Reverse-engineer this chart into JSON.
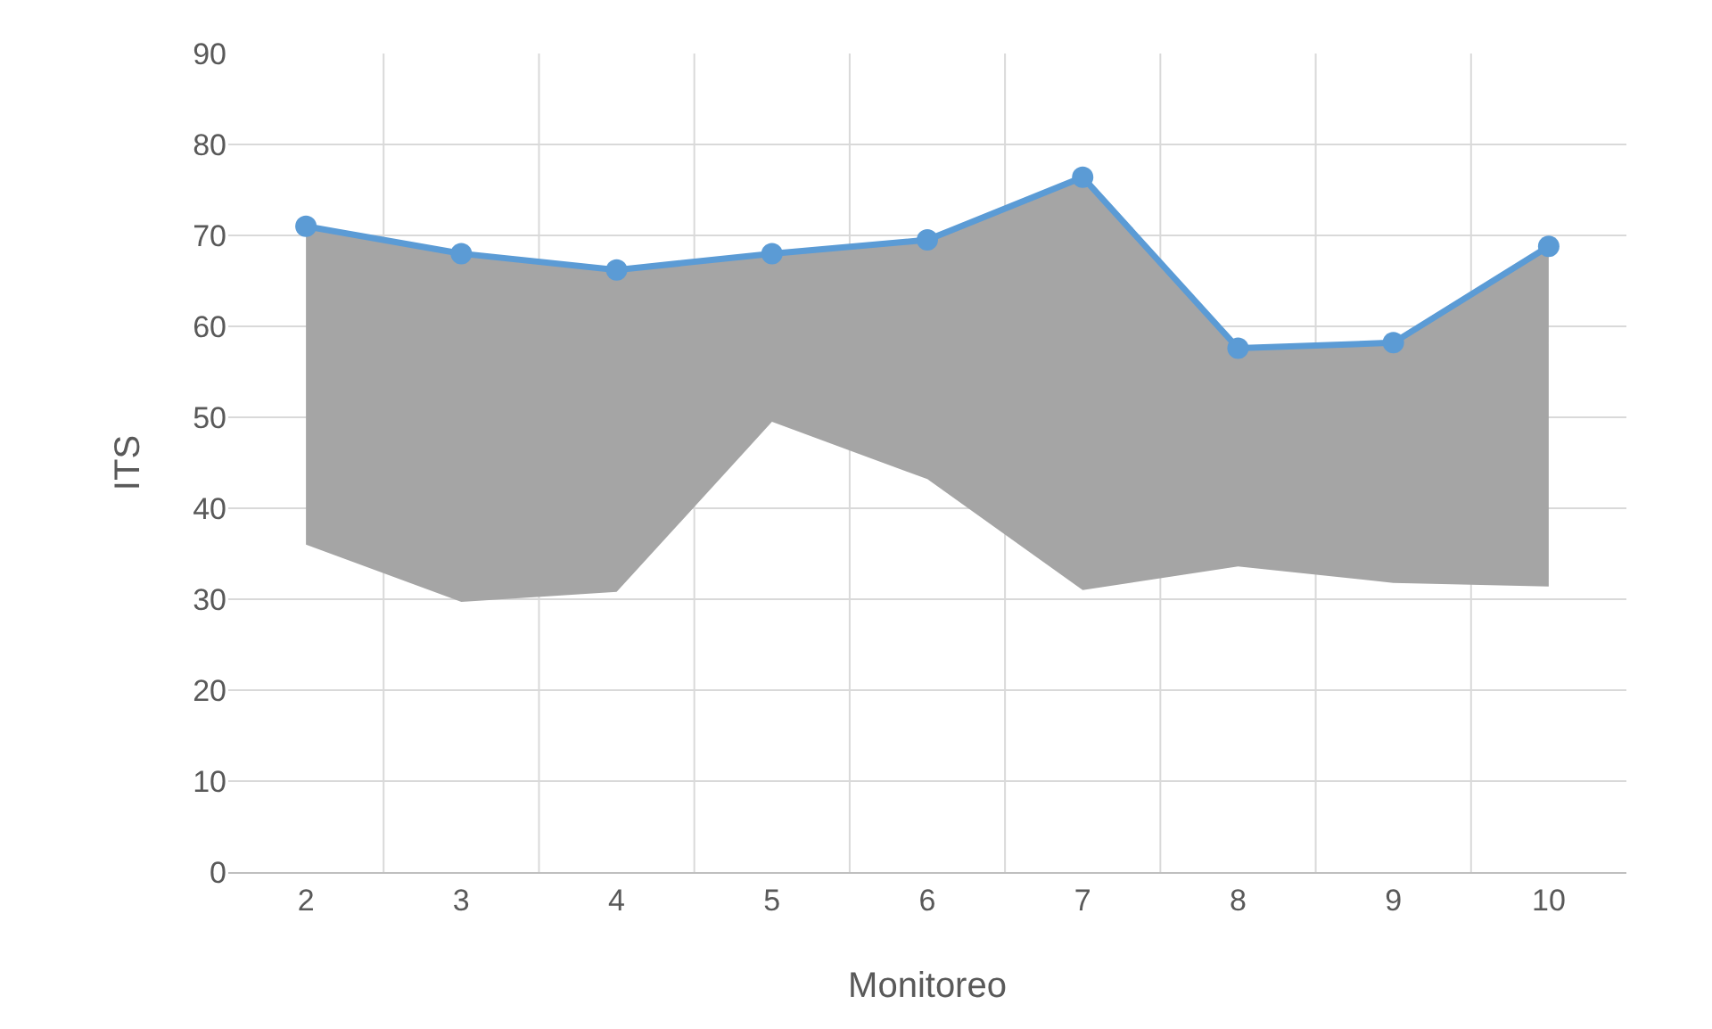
{
  "chart_data": {
    "type": "line",
    "xlabel": "Monitoreo",
    "ylabel": "ITS",
    "categories": [
      "2",
      "3",
      "4",
      "5",
      "6",
      "7",
      "8",
      "9",
      "10"
    ],
    "series": [
      {
        "color": "#5b9bd5",
        "values": [
          71,
          68,
          66.2,
          68,
          69.5,
          76.4,
          57.6,
          58.2,
          68.8
        ],
        "lower": [
          36,
          29.7,
          30.8,
          49.5,
          43.2,
          31,
          33.6,
          31.8,
          31.4
        ],
        "upper": [
          71,
          68,
          66.2,
          68,
          69.5,
          76.4,
          57.6,
          58.2,
          68.8
        ]
      }
    ],
    "ylim": [
      0,
      90
    ],
    "yticks": [
      0,
      10,
      20,
      30,
      40,
      50,
      60,
      70,
      80,
      90
    ],
    "grid": true,
    "marker": "circle",
    "line_style": "solid"
  }
}
